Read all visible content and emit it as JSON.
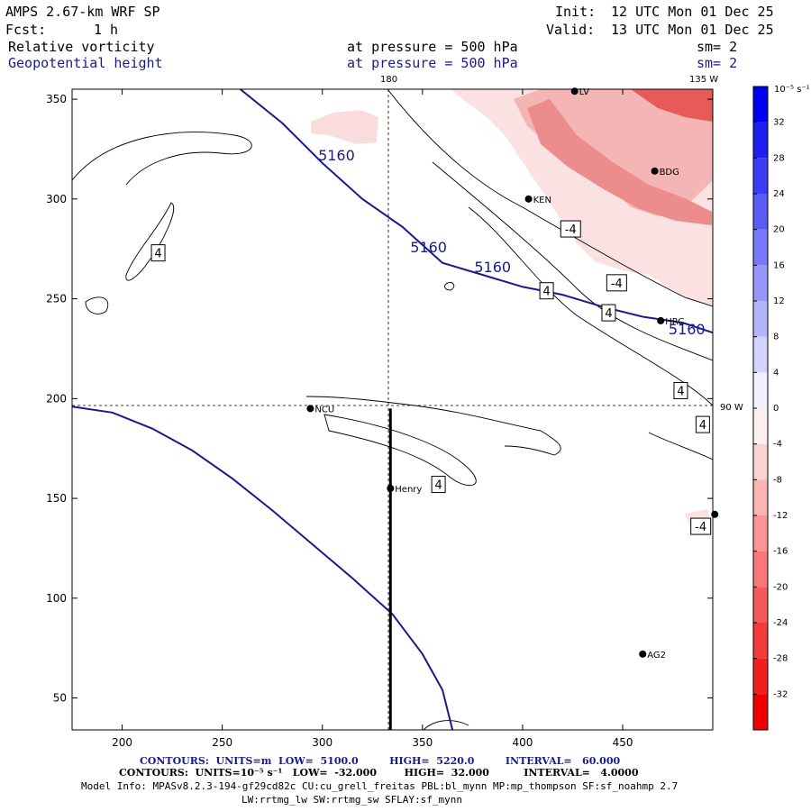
{
  "header": {
    "model_title": "AMPS 2.67-km WRF SP",
    "fcst_label": "Fcst:",
    "fcst_value": "1 h",
    "init_label": "Init:",
    "init_value": "12 UTC Mon 01 Dec 25",
    "valid_label": "Valid:",
    "valid_value": "13 UTC Mon 01 Dec 25",
    "field1_name": "Relative vorticity",
    "field1_level": "at pressure =  500 hPa",
    "field1_smooth": "sm= 2",
    "field2_name": "Geopotential height",
    "field2_level": "at pressure =  500 hPa",
    "field2_smooth": "sm= 2"
  },
  "map_labels": {
    "meridian_180": "180",
    "meridian_135w": "135 W",
    "meridian_90w": "90 W"
  },
  "stations": [
    {
      "name": "LV",
      "x": 426,
      "y": 354
    },
    {
      "name": "BDG",
      "x": 466,
      "y": 314
    },
    {
      "name": "KEN",
      "x": 403,
      "y": 300
    },
    {
      "name": "HRC",
      "x": 469,
      "y": 239
    },
    {
      "name": "NCU",
      "x": 294,
      "y": 195
    },
    {
      "name": "Henry",
      "x": 334,
      "y": 155
    },
    {
      "name": "AG2",
      "x": 460,
      "y": 72
    },
    {
      "name": "",
      "x": 496,
      "y": 142
    }
  ],
  "colors": {
    "height_contour": "#1a1a8c",
    "vorticity_contour": "#000000",
    "background": "#ffffff"
  },
  "chart_data": {
    "type": "contour",
    "x_ticks": [
      200,
      250,
      300,
      350,
      400,
      450
    ],
    "y_ticks": [
      50,
      100,
      150,
      200,
      250,
      300,
      350
    ],
    "xlim": [
      175,
      495
    ],
    "ylim": [
      34,
      355
    ],
    "cross_section_x": 334,
    "cross_section_y_top": 195,
    "reference_lines": {
      "x": 334,
      "y": 196
    },
    "height_contour_labels": [
      {
        "text": "5160",
        "x": 306,
        "y": 322
      },
      {
        "text": "5160",
        "x": 352,
        "y": 276
      },
      {
        "text": "5160",
        "x": 384,
        "y": 266
      },
      {
        "text": "5160",
        "x": 481,
        "y": 235
      }
    ],
    "height_contours": [
      {
        "level": 5160,
        "points": [
          [
            259,
            355
          ],
          [
            280,
            338
          ],
          [
            300,
            318
          ],
          [
            320,
            300
          ],
          [
            340,
            286
          ],
          [
            360,
            268
          ],
          [
            380,
            262
          ],
          [
            400,
            256
          ],
          [
            420,
            252
          ],
          [
            440,
            246
          ],
          [
            460,
            241
          ],
          [
            480,
            238
          ],
          [
            495,
            233
          ]
        ]
      },
      {
        "level": 5220,
        "points": [
          [
            175,
            196
          ],
          [
            195,
            193
          ],
          [
            215,
            185
          ],
          [
            235,
            174
          ],
          [
            255,
            160
          ],
          [
            275,
            144
          ],
          [
            295,
            127
          ],
          [
            315,
            110
          ],
          [
            335,
            92
          ],
          [
            350,
            72
          ],
          [
            360,
            54
          ],
          [
            365,
            34
          ]
        ]
      }
    ],
    "vorticity_labels": [
      {
        "text": "4",
        "x": 218,
        "y": 273
      },
      {
        "text": "-4",
        "x": 424,
        "y": 285
      },
      {
        "text": "-4",
        "x": 447,
        "y": 258
      },
      {
        "text": "4",
        "x": 412,
        "y": 254
      },
      {
        "text": "4",
        "x": 443,
        "y": 243
      },
      {
        "text": "4",
        "x": 479,
        "y": 204
      },
      {
        "text": "4",
        "x": 490,
        "y": 187
      },
      {
        "text": "4",
        "x": 358,
        "y": 157
      },
      {
        "text": "-4",
        "x": 489,
        "y": 136
      }
    ],
    "colorbar": {
      "unit_label": "10⁻⁵ s⁻¹",
      "tick_labels": [
        "32",
        "28",
        "24",
        "20",
        "16",
        "12",
        "8",
        "4",
        "0",
        "-4",
        "-8",
        "-12",
        "-16",
        "-20",
        "-24",
        "-28",
        "-32"
      ],
      "range": [
        -36,
        36
      ],
      "positive_color": "#0000ee",
      "negative_color": "#ee0000"
    }
  },
  "footer": {
    "line1": "CONTOURS:  UNITS=m  LOW=  5100.0         HIGH=  5220.0         INTERVAL=   60.000",
    "line2": "CONTOURS:  UNITS=10⁻⁵ s⁻¹   LOW=  -32.000        HIGH=  32.000          INTERVAL=   4.0000",
    "line3": "Model Info: MPASv8.2.3-194-gf29cd82c CU:cu_grell_freitas PBL:bl_mynn MP:mp_thompson SF:sf_noahmp 2.7",
    "line4": "LW:rrtmg_lw SW:rrtmg_sw SFLAY:sf_mynn"
  }
}
